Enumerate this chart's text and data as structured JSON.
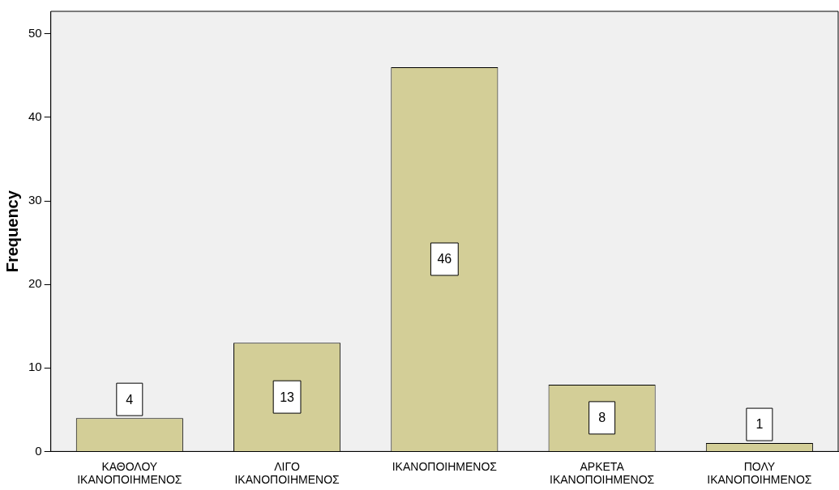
{
  "chart_data": {
    "type": "bar",
    "ylabel": "Frequency",
    "categories": [
      "ΚΑΘΟΛΟΥ ΙΚΑΝΟΠΟΙΗΜΕΝΟΣ",
      "ΛΙΓΟ ΙΚΑΝΟΠΟΙΗΜΕΝΟΣ",
      "ΙΚΑΝΟΠΟΙΗΜΕΝΟΣ",
      "ΑΡΚΕΤΑ ΙΚΑΝΟΠΟΙΗΜΕΝΟΣ",
      "ΠΟΛΥ ΙΚΑΝΟΠΟΙΗΜΕΝΟΣ"
    ],
    "values": [
      4,
      13,
      46,
      8,
      1
    ],
    "color": "#d3ce97",
    "ylim": [
      0,
      52.7
    ],
    "yticks": [
      0,
      10,
      20,
      30,
      40,
      50
    ],
    "grid": false,
    "legend": false,
    "data_labels": true
  }
}
